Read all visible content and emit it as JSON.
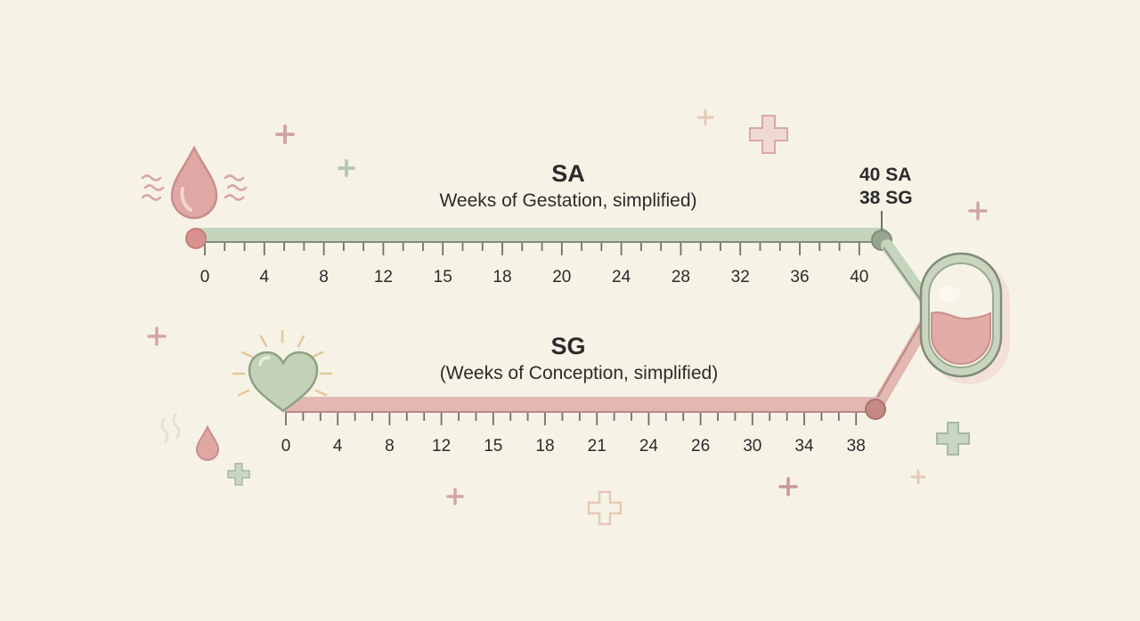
{
  "top_scale": {
    "title": "SA",
    "subtitle": "Weeks of Gestation, simplified)",
    "tick_labels": [
      "0",
      "4",
      "8",
      "12",
      "15",
      "18",
      "20",
      "24",
      "28",
      "32",
      "36",
      "40"
    ],
    "color": "#c5d4bc"
  },
  "bottom_scale": {
    "title": "SG",
    "subtitle": "(Weeks of Conception, simplified)",
    "tick_labels": [
      "0",
      "4",
      "8",
      "12",
      "15",
      "18",
      "21",
      "24",
      "26",
      "30",
      "34",
      "38"
    ],
    "color": "#e3b7b2"
  },
  "endpoint": {
    "line1": "40 SA",
    "line2": "38 SG"
  },
  "icons": [
    "blood-drop-icon",
    "heart-icon",
    "small-drop-icon",
    "capsule-icon",
    "plus-icon"
  ]
}
